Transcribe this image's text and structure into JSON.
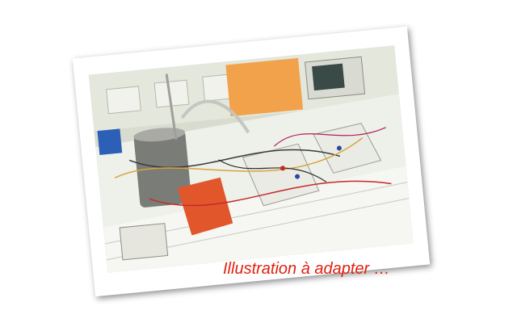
{
  "caption": "Illustration à adapter …",
  "photo": {
    "subject-icon": "electronics-lab-bench-photo"
  },
  "colors": {
    "caption": "#e02010",
    "frame": "#ffffff"
  }
}
